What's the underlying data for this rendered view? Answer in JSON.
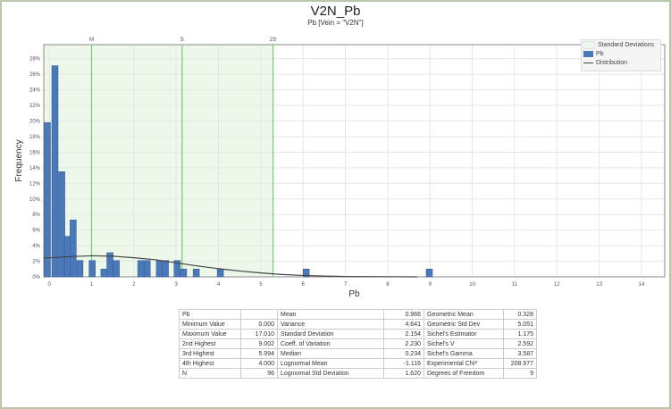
{
  "header": {
    "title": "V2N_Pb",
    "subtitle": "Pb [Vein = \"V2N\"]"
  },
  "legend": {
    "items": [
      "Standard Deviations",
      "Pb",
      "Distribution"
    ]
  },
  "colors": {
    "bar": "#4a78b8",
    "bar_edge": "#2e5a94",
    "sd_fill": "#eef8ea",
    "sd_line": "#7ccc7c",
    "curve": "#444444"
  },
  "chart_data": {
    "type": "bar",
    "title": "V2N_Pb",
    "subtitle": "Pb [Vein = \"V2N\"]",
    "xlabel": "Pb",
    "ylabel": "Frequency",
    "xlim": [
      -0.13,
      14.55
    ],
    "ylim": [
      0,
      29.8
    ],
    "x_ticks": [
      0,
      1,
      2,
      3,
      4,
      5,
      6,
      7,
      8,
      9,
      10,
      11,
      12,
      13,
      14
    ],
    "y_ticks": [
      0,
      2,
      4,
      6,
      8,
      10,
      12,
      14,
      16,
      18,
      20,
      22,
      24,
      26,
      28
    ],
    "y_tick_suffix": "%",
    "grid": true,
    "legend_position": "top-right",
    "bin_width": 0.148,
    "bins": [
      {
        "x": -0.12,
        "freq": 19.8
      },
      {
        "x": 0.06,
        "freq": 27.1
      },
      {
        "x": 0.22,
        "freq": 13.5
      },
      {
        "x": 0.36,
        "freq": 5.2
      },
      {
        "x": 0.49,
        "freq": 7.3
      },
      {
        "x": 0.65,
        "freq": 2.1
      },
      {
        "x": 0.94,
        "freq": 2.1
      },
      {
        "x": 1.22,
        "freq": 1.0
      },
      {
        "x": 1.36,
        "freq": 3.1
      },
      {
        "x": 1.51,
        "freq": 2.1
      },
      {
        "x": 2.09,
        "freq": 2.1
      },
      {
        "x": 2.24,
        "freq": 2.1
      },
      {
        "x": 2.53,
        "freq": 2.1
      },
      {
        "x": 2.67,
        "freq": 2.1
      },
      {
        "x": 2.95,
        "freq": 2.1
      },
      {
        "x": 3.1,
        "freq": 1.0
      },
      {
        "x": 3.4,
        "freq": 1.0
      },
      {
        "x": 3.97,
        "freq": 1.0
      },
      {
        "x": 6.0,
        "freq": 1.0
      },
      {
        "x": 8.91,
        "freq": 1.0
      }
    ],
    "sd_markers": [
      {
        "label": "M",
        "x": 1.0
      },
      {
        "label": "S",
        "x": 3.14
      },
      {
        "label": "2S",
        "x": 5.29
      }
    ],
    "distribution": [
      [
        -0.13,
        2.4
      ],
      [
        0.5,
        2.6
      ],
      [
        1,
        2.7
      ],
      [
        1.5,
        2.65
      ],
      [
        2,
        2.45
      ],
      [
        2.5,
        2.2
      ],
      [
        3,
        1.8
      ],
      [
        3.5,
        1.4
      ],
      [
        4,
        1.05
      ],
      [
        4.5,
        0.75
      ],
      [
        5,
        0.5
      ],
      [
        5.5,
        0.3
      ],
      [
        6,
        0.18
      ],
      [
        6.5,
        0.1
      ],
      [
        7,
        0.05
      ],
      [
        8,
        0.02
      ],
      [
        8.7,
        0.0
      ]
    ]
  },
  "stats": {
    "rows": [
      [
        "Pb",
        "",
        "Mean",
        "0.966",
        "Geometric Mean",
        "0.328"
      ],
      [
        "Minimum Value",
        "0.000",
        "Variance",
        "4.641",
        "Geometric Std Dev",
        "5.051"
      ],
      [
        "Maximum Value",
        "17.010",
        "Standard Deviation",
        "2.154",
        "Sichel's Estimator",
        "1.175"
      ],
      [
        "2nd Highest",
        "9.002",
        "Coeff. of Variation",
        "2.230",
        "Sichel's V",
        "2.592"
      ],
      [
        "3rd Highest",
        "5.994",
        "Median",
        "0.234",
        "Sichel's Gamma",
        "3.587"
      ],
      [
        "4th Highest",
        "4.000",
        "Lognormal Mean",
        "-1.116",
        "Experimental ChI²",
        "208.977"
      ],
      [
        "N",
        "96",
        "Lognormal Std Deviation",
        "1.620",
        "Degrees of Freedom",
        "9"
      ]
    ]
  }
}
